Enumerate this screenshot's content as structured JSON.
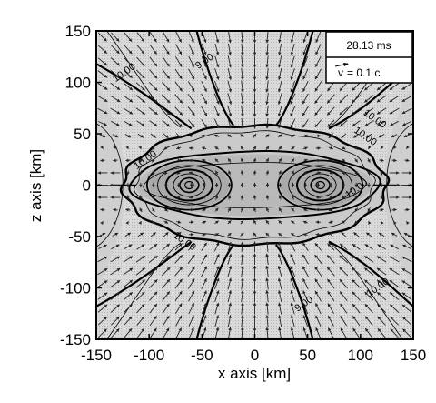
{
  "chart_data": {
    "type": "contour",
    "xlabel": "x axis [km]",
    "ylabel": "z axis [km]",
    "xlim": [
      -150,
      150
    ],
    "ylim": [
      -150,
      150
    ],
    "xticks": [
      "-150",
      "-100",
      "-50",
      "0",
      "50",
      "100",
      "150"
    ],
    "yticks": [
      "-150",
      "-100",
      "-50",
      "0",
      "50",
      "100",
      "150"
    ],
    "legend": {
      "time": "28.13 ms",
      "velocity_prefix": "v",
      "velocity_value": "= 0.1 c"
    },
    "contour_labels": [
      {
        "text": "10.00",
        "x": -122,
        "y": 107
      },
      {
        "text": "9.00",
        "x": -46,
        "y": 118
      },
      {
        "text": "10.00",
        "x": 112,
        "y": 62
      },
      {
        "text": "10.00",
        "x": 103,
        "y": 45
      },
      {
        "text": "10.00",
        "x": -102,
        "y": 22
      },
      {
        "text": "10.00",
        "x": 98,
        "y": -6
      },
      {
        "text": "10.00",
        "x": -68,
        "y": -57
      },
      {
        "text": "10.00",
        "x": 118,
        "y": -102
      },
      {
        "text": "9.00",
        "x": 48,
        "y": -118
      }
    ],
    "disk_centers": [
      -62,
      62
    ],
    "shock_radius": {
      "x": 125,
      "z": 58
    },
    "colors": {
      "background": "#d6d6d6",
      "core": "#bcbcbc",
      "lines": "#000000",
      "arrows": "#222222"
    }
  }
}
